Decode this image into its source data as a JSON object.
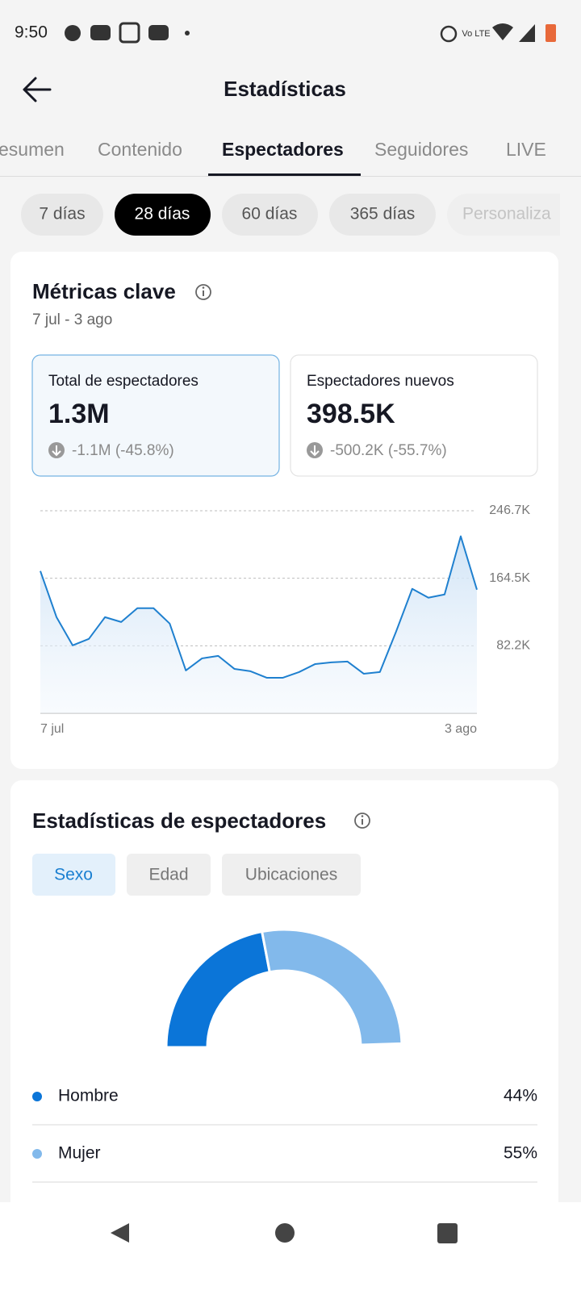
{
  "status_bar": {
    "time": "9:50"
  },
  "header": {
    "title": "Estadísticas"
  },
  "tabs": [
    "esumen",
    "Contenido",
    "Espectadores",
    "Seguidores",
    "LIVE"
  ],
  "periods": [
    "7 días",
    "28 días",
    "60 días",
    "365 días",
    "Personaliza"
  ],
  "key_metrics": {
    "title": "Métricas clave",
    "date_range": "7 jul - 3 ago",
    "cards": [
      {
        "label": "Total de espectadores",
        "value": "1.3M",
        "change": "-1.1M (-45.8%)"
      },
      {
        "label": "Espectadores nuevos",
        "value": "398.5K",
        "change": "-500.2K (-55.7%)"
      }
    ]
  },
  "viewer_stats": {
    "title": "Estadísticas de espectadores",
    "filters": [
      "Sexo",
      "Edad",
      "Ubicaciones"
    ]
  },
  "chart_data": [
    {
      "type": "line",
      "categories": [
        "7 jul",
        null,
        null,
        null,
        null,
        null,
        null,
        null,
        null,
        null,
        null,
        null,
        null,
        null,
        null,
        null,
        null,
        null,
        null,
        null,
        null,
        null,
        null,
        null,
        null,
        null,
        null,
        "3 ago"
      ],
      "series": [
        {
          "name": "Total de espectadores",
          "color": "#1f80cf",
          "values": [
            173300,
            117100,
            82700,
            90600,
            117100,
            111200,
            128000,
            128000,
            109300,
            52200,
            66900,
            69900,
            54100,
            51200,
            43300,
            43300,
            50200,
            60000,
            62000,
            63000,
            48200,
            50200,
            99400,
            151600,
            140800,
            144700,
            215600,
            150600
          ]
        }
      ],
      "ylim": [
        0,
        246700
      ],
      "yticks": [
        {
          "value": 82200,
          "label": "82.2K"
        },
        {
          "value": 164500,
          "label": "164.5K"
        },
        {
          "value": 246700,
          "label": "246.7K"
        }
      ],
      "grid": true
    },
    {
      "type": "pie",
      "categories": [
        "Hombre",
        "Mujer"
      ],
      "values": [
        44,
        55
      ],
      "value_labels": [
        "44%",
        "55%"
      ],
      "colors": [
        "#0b75d8",
        "#82b9eb"
      ]
    }
  ]
}
